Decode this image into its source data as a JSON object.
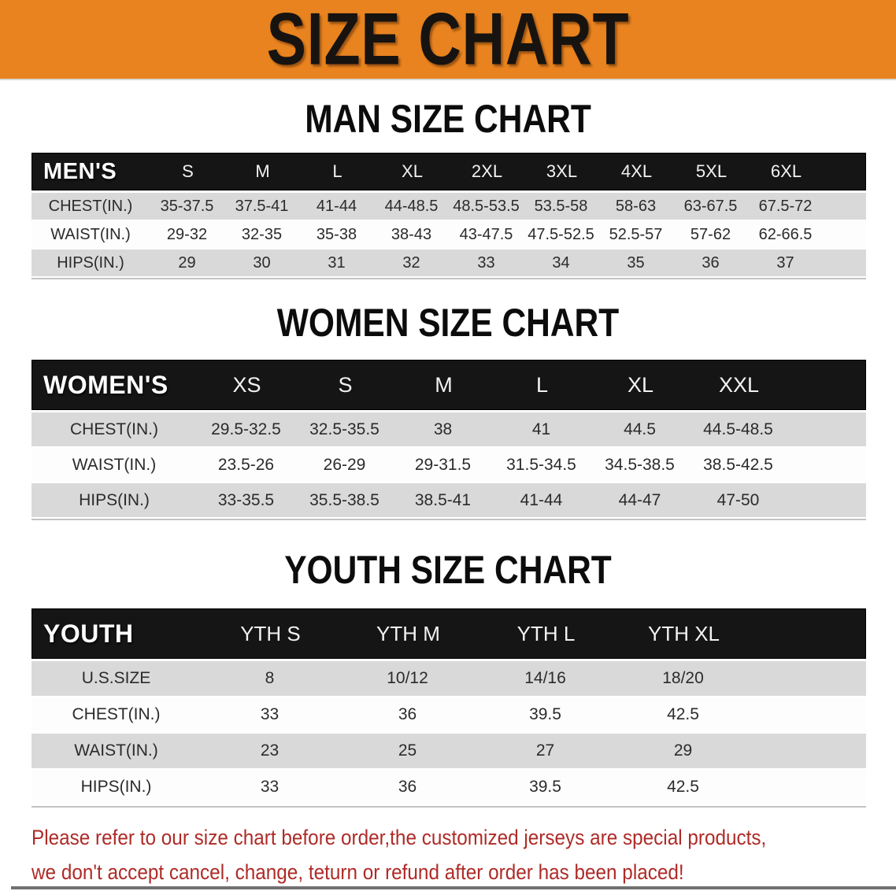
{
  "banner": {
    "title": "SIZE CHART"
  },
  "sections": [
    {
      "id": "men",
      "heading": "MAN SIZE CHART",
      "table": {
        "label": "MEN'S",
        "columns": [
          "S",
          "M",
          "L",
          "XL",
          "2XL",
          "3XL",
          "4XL",
          "5XL",
          "6XL"
        ],
        "rows": [
          {
            "label": "CHEST(IN.)",
            "values": [
              "35-37.5",
              "37.5-41",
              "41-44",
              "44-48.5",
              "48.5-53.5",
              "53.5-58",
              "58-63",
              "63-67.5",
              "67.5-72"
            ]
          },
          {
            "label": "WAIST(IN.)",
            "values": [
              "29-32",
              "32-35",
              "35-38",
              "38-43",
              "43-47.5",
              "47.5-52.5",
              "52.5-57",
              "57-62",
              "62-66.5"
            ]
          },
          {
            "label": "HIPS(IN.)",
            "values": [
              "29",
              "30",
              "31",
              "32",
              "33",
              "34",
              "35",
              "36",
              "37"
            ]
          }
        ]
      }
    },
    {
      "id": "women",
      "heading": "WOMEN SIZE CHART",
      "table": {
        "label": "WOMEN'S",
        "columns": [
          "XS",
          "S",
          "M",
          "L",
          "XL",
          "XXL"
        ],
        "rows": [
          {
            "label": "CHEST(IN.)",
            "values": [
              "29.5-32.5",
              "32.5-35.5",
              "38",
              "41",
              "44.5",
              "44.5-48.5"
            ]
          },
          {
            "label": "WAIST(IN.)",
            "values": [
              "23.5-26",
              "26-29",
              "29-31.5",
              "31.5-34.5",
              "34.5-38.5",
              "38.5-42.5"
            ]
          },
          {
            "label": "HIPS(IN.)",
            "values": [
              "33-35.5",
              "35.5-38.5",
              "38.5-41",
              "41-44",
              "44-47",
              "47-50"
            ]
          }
        ]
      }
    },
    {
      "id": "youth",
      "heading": "YOUTH SIZE CHART",
      "table": {
        "label": "YOUTH",
        "columns": [
          "YTH S",
          "YTH M",
          "YTH L",
          "YTH XL"
        ],
        "rows": [
          {
            "label": "U.S.SIZE",
            "values": [
              "8",
              "10/12",
              "14/16",
              "18/20"
            ]
          },
          {
            "label": "CHEST(IN.)",
            "values": [
              "33",
              "36",
              "39.5",
              "42.5"
            ]
          },
          {
            "label": "WAIST(IN.)",
            "values": [
              "23",
              "25",
              "27",
              "29"
            ]
          },
          {
            "label": "HIPS(IN.)",
            "values": [
              "33",
              "36",
              "39.5",
              "42.5"
            ]
          }
        ]
      }
    }
  ],
  "disclaimer": {
    "line1": "Please refer to our size chart before order,the customized jerseys are special products,",
    "line2": "we don't accept cancel, change, teturn or refund after order has been placed!"
  },
  "colors": {
    "banner_bg": "#E8831F",
    "header_bar_bg": "#151515",
    "row_alt_bg": "#d9d9d9",
    "disclaimer_text": "#AE2B27"
  }
}
